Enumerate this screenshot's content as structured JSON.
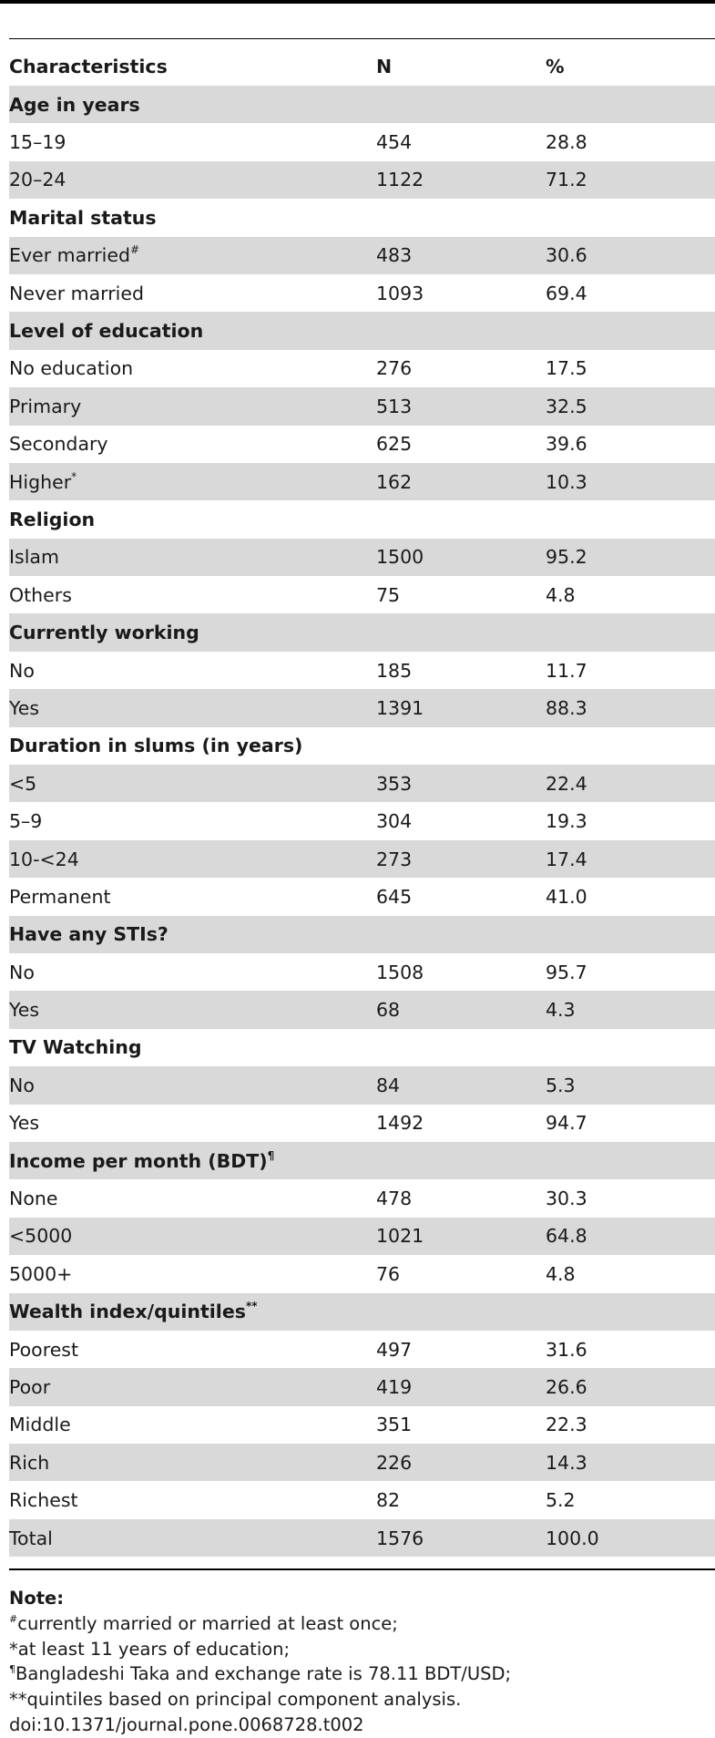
{
  "table": {
    "headers": [
      "Characteristics",
      "N",
      "%"
    ],
    "rows": [
      {
        "label": "Age in years",
        "n": "",
        "pct": "",
        "section": true
      },
      {
        "label": "15–19",
        "n": "454",
        "pct": "28.8"
      },
      {
        "label": "20–24",
        "n": "1122",
        "pct": "71.2"
      },
      {
        "label": "Marital status",
        "n": "",
        "pct": "",
        "section": true
      },
      {
        "label": "Ever married",
        "sup": "#",
        "n": "483",
        "pct": "30.6"
      },
      {
        "label": "Never married",
        "n": "1093",
        "pct": "69.4"
      },
      {
        "label": "Level of education",
        "n": "",
        "pct": "",
        "section": true
      },
      {
        "label": "No education",
        "n": "276",
        "pct": "17.5"
      },
      {
        "label": "Primary",
        "n": "513",
        "pct": "32.5"
      },
      {
        "label": "Secondary",
        "n": "625",
        "pct": "39.6"
      },
      {
        "label": "Higher",
        "sup": "*",
        "n": "162",
        "pct": "10.3"
      },
      {
        "label": "Religion",
        "n": "",
        "pct": "",
        "section": true
      },
      {
        "label": "Islam",
        "n": "1500",
        "pct": "95.2"
      },
      {
        "label": "Others",
        "n": "75",
        "pct": "4.8"
      },
      {
        "label": "Currently working",
        "n": "",
        "pct": "",
        "section": true
      },
      {
        "label": "No",
        "n": "185",
        "pct": "11.7"
      },
      {
        "label": "Yes",
        "n": "1391",
        "pct": "88.3"
      },
      {
        "label": "Duration in slums (in years)",
        "n": "",
        "pct": "",
        "section": true
      },
      {
        "label": "<5",
        "n": "353",
        "pct": "22.4"
      },
      {
        "label": "5–9",
        "n": "304",
        "pct": "19.3"
      },
      {
        "label": "10-<24",
        "n": "273",
        "pct": "17.4"
      },
      {
        "label": "Permanent",
        "n": "645",
        "pct": "41.0"
      },
      {
        "label": "Have any STIs?",
        "n": "",
        "pct": "",
        "section": true
      },
      {
        "label": "No",
        "n": "1508",
        "pct": "95.7"
      },
      {
        "label": "Yes",
        "n": "68",
        "pct": "4.3"
      },
      {
        "label": "TV Watching",
        "n": "",
        "pct": "",
        "section": true
      },
      {
        "label": "No",
        "n": "84",
        "pct": "5.3"
      },
      {
        "label": "Yes",
        "n": "1492",
        "pct": "94.7"
      },
      {
        "label": "Income per month (BDT)",
        "sup": "¶",
        "n": "",
        "pct": "",
        "section": true
      },
      {
        "label": "None",
        "n": "478",
        "pct": "30.3"
      },
      {
        "label": "<5000",
        "n": "1021",
        "pct": "64.8"
      },
      {
        "label": "5000+",
        "n": "76",
        "pct": "4.8"
      },
      {
        "label": "Wealth index/quintiles",
        "sup": "**",
        "n": "",
        "pct": "",
        "section": true
      },
      {
        "label": "Poorest",
        "n": "497",
        "pct": "31.6"
      },
      {
        "label": "Poor",
        "n": "419",
        "pct": "26.6"
      },
      {
        "label": "Middle",
        "n": "351",
        "pct": "22.3"
      },
      {
        "label": "Rich",
        "n": "226",
        "pct": "14.3"
      },
      {
        "label": "Richest",
        "n": "82",
        "pct": "5.2"
      },
      {
        "label": "Total",
        "n": "1576",
        "pct": "100.0"
      }
    ]
  },
  "notes": {
    "title": "Note:",
    "lines": [
      {
        "sup": "#",
        "text": "currently married or married at least once;"
      },
      {
        "sup": "",
        "text": "*at least 11 years of education;"
      },
      {
        "sup": "¶",
        "text": "Bangladeshi Taka and exchange rate is 78.11 BDT/USD;"
      },
      {
        "sup": "",
        "text": "**quintiles based on principal component analysis."
      }
    ],
    "doi": "doi:10.1371/journal.pone.0068728.t002"
  },
  "colors": {
    "shade": "#d9d9d9",
    "rule": "#000000"
  }
}
